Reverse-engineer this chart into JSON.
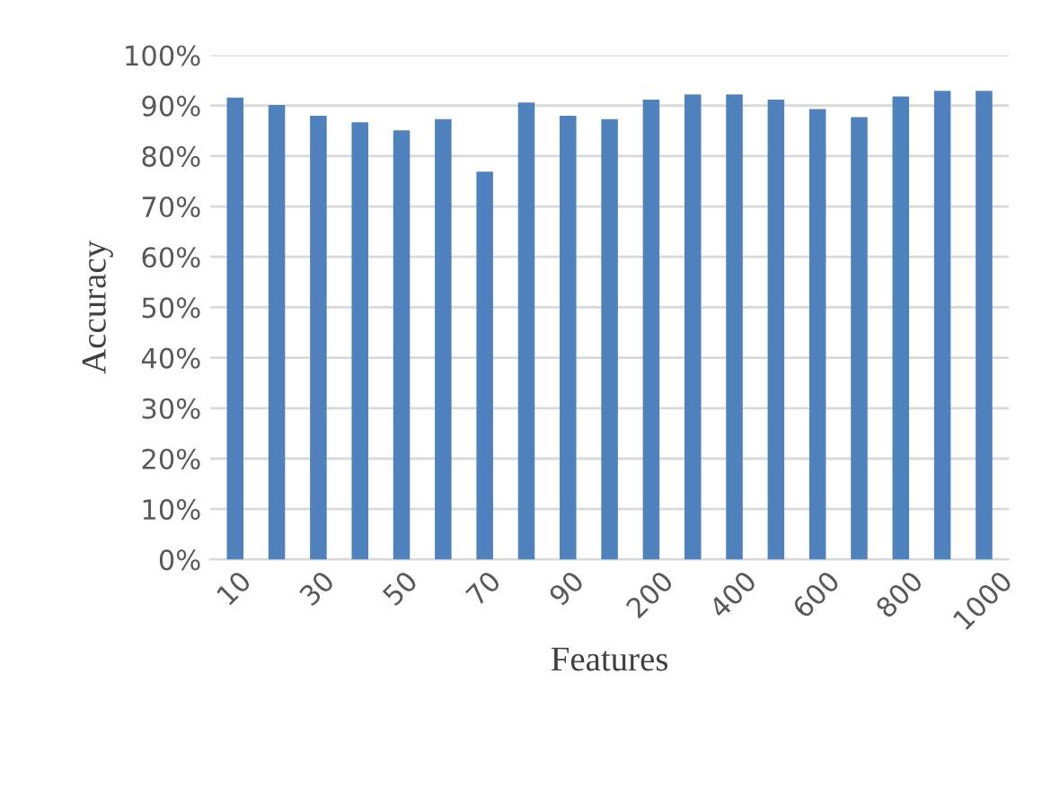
{
  "chart_data": {
    "type": "bar",
    "xlabel": "Features",
    "ylabel": "Accuracy",
    "categories": [
      "10",
      null,
      "30",
      null,
      "50",
      null,
      "70",
      null,
      "90",
      null,
      "200",
      null,
      "400",
      null,
      "600",
      null,
      "800",
      null,
      "1000"
    ],
    "values": [
      91.6,
      90.1,
      88.0,
      86.7,
      85.1,
      87.3,
      76.9,
      90.6,
      88.0,
      87.3,
      91.2,
      92.2,
      92.2,
      91.2,
      89.3,
      87.7,
      91.8,
      92.9,
      92.9
    ],
    "color": "#4f81bd",
    "ylim": [
      0,
      100
    ],
    "yticks": [
      {
        "value": 0,
        "label": "0%"
      },
      {
        "value": 10,
        "label": "10%"
      },
      {
        "value": 20,
        "label": "20%"
      },
      {
        "value": 30,
        "label": "30%"
      },
      {
        "value": 40,
        "label": "40%"
      },
      {
        "value": 50,
        "label": "50%"
      },
      {
        "value": 60,
        "label": "60%"
      },
      {
        "value": 70,
        "label": "70%"
      },
      {
        "value": 80,
        "label": "80%"
      },
      {
        "value": 90,
        "label": "90%"
      },
      {
        "value": 100,
        "label": "100%"
      }
    ],
    "grid": "y"
  }
}
